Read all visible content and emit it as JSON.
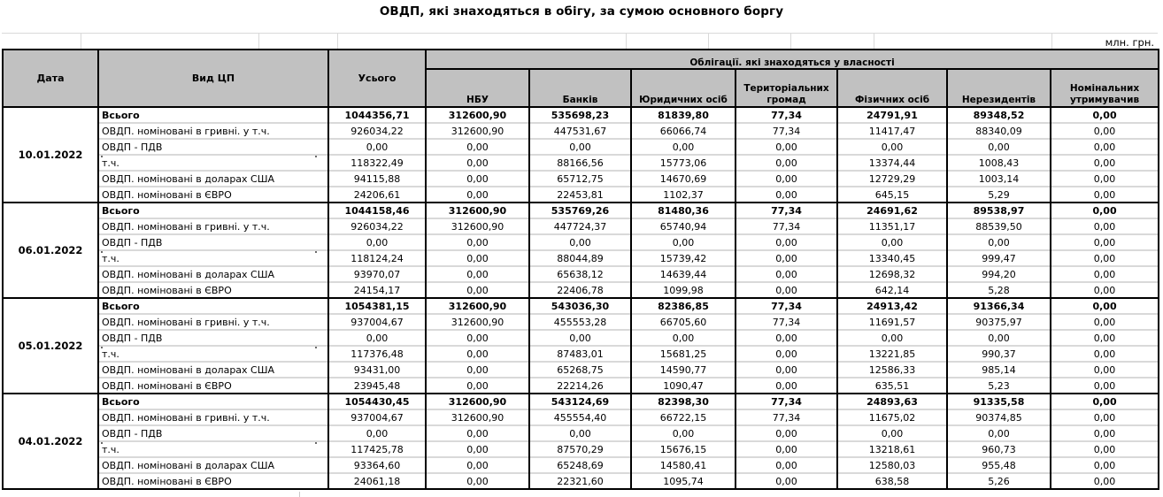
{
  "title": "ОВДП, які знаходяться в обігу, за сумою основного боргу",
  "unit_label": "млн. грн.",
  "table": {
    "col_date": "Дата",
    "col_type": "Вид ЦП",
    "col_total": "Усього",
    "ownership_header": "Облігації. які знаходяться у власності",
    "ownership_columns": [
      "НБУ",
      "Банків",
      "Юридичних осіб",
      "Територіальних громад",
      "Фізичних осіб",
      "Нерезидентів",
      "Номінальних утримувачив"
    ],
    "groups": [
      {
        "date": "10.01.2022",
        "rows": [
          {
            "label": "Всього",
            "values": [
              "1044356,71",
              "312600,90",
              "535698,23",
              "81839,80",
              "77,34",
              "24791,91",
              "89348,52",
              "0,00"
            ]
          },
          {
            "label": "ОВДП. номіновані в гривні. у т.ч.",
            "values": [
              "926034,22",
              "312600,90",
              "447531,67",
              "66066,74",
              "77,34",
              "11417,47",
              "88340,09",
              "0,00"
            ]
          },
          {
            "label": "ОВДП - ПДВ",
            "values": [
              "0,00",
              "0,00",
              "0,00",
              "0,00",
              "0,00",
              "0,00",
              "0,00",
              "0,00"
            ]
          },
          {
            "label": "т.ч.",
            "values": [
              "118322,49",
              "0,00",
              "88166,56",
              "15773,06",
              "0,00",
              "13374,44",
              "1008,43",
              "0,00"
            ]
          },
          {
            "label": "ОВДП. номіновані в доларах США",
            "values": [
              "94115,88",
              "0,00",
              "65712,75",
              "14670,69",
              "0,00",
              "12729,29",
              "1003,14",
              "0,00"
            ]
          },
          {
            "label": "ОВДП. номіновані в ЄВРО",
            "values": [
              "24206,61",
              "0,00",
              "22453,81",
              "1102,37",
              "0,00",
              "645,15",
              "5,29",
              "0,00"
            ]
          }
        ]
      },
      {
        "date": "06.01.2022",
        "rows": [
          {
            "label": "Всього",
            "values": [
              "1044158,46",
              "312600,90",
              "535769,26",
              "81480,36",
              "77,34",
              "24691,62",
              "89538,97",
              "0,00"
            ]
          },
          {
            "label": "ОВДП. номіновані в гривні. у т.ч.",
            "values": [
              "926034,22",
              "312600,90",
              "447724,37",
              "65740,94",
              "77,34",
              "11351,17",
              "88539,50",
              "0,00"
            ]
          },
          {
            "label": "ОВДП - ПДВ",
            "values": [
              "0,00",
              "0,00",
              "0,00",
              "0,00",
              "0,00",
              "0,00",
              "0,00",
              "0,00"
            ]
          },
          {
            "label": "т.ч.",
            "values": [
              "118124,24",
              "0,00",
              "88044,89",
              "15739,42",
              "0,00",
              "13340,45",
              "999,47",
              "0,00"
            ]
          },
          {
            "label": "ОВДП. номіновані в доларах США",
            "values": [
              "93970,07",
              "0,00",
              "65638,12",
              "14639,44",
              "0,00",
              "12698,32",
              "994,20",
              "0,00"
            ]
          },
          {
            "label": "ОВДП. номіновані в ЄВРО",
            "values": [
              "24154,17",
              "0,00",
              "22406,78",
              "1099,98",
              "0,00",
              "642,14",
              "5,28",
              "0,00"
            ]
          }
        ]
      },
      {
        "date": "05.01.2022",
        "rows": [
          {
            "label": "Всього",
            "values": [
              "1054381,15",
              "312600,90",
              "543036,30",
              "82386,85",
              "77,34",
              "24913,42",
              "91366,34",
              "0,00"
            ]
          },
          {
            "label": "ОВДП. номіновані в гривні. у т.ч.",
            "values": [
              "937004,67",
              "312600,90",
              "455553,28",
              "66705,60",
              "77,34",
              "11691,57",
              "90375,97",
              "0,00"
            ]
          },
          {
            "label": "ОВДП - ПДВ",
            "values": [
              "0,00",
              "0,00",
              "0,00",
              "0,00",
              "0,00",
              "0,00",
              "0,00",
              "0,00"
            ]
          },
          {
            "label": "т.ч.",
            "values": [
              "117376,48",
              "0,00",
              "87483,01",
              "15681,25",
              "0,00",
              "13221,85",
              "990,37",
              "0,00"
            ]
          },
          {
            "label": "ОВДП. номіновані в доларах США",
            "values": [
              "93431,00",
              "0,00",
              "65268,75",
              "14590,77",
              "0,00",
              "12586,33",
              "985,14",
              "0,00"
            ]
          },
          {
            "label": "ОВДП. номіновані в ЄВРО",
            "values": [
              "23945,48",
              "0,00",
              "22214,26",
              "1090,47",
              "0,00",
              "635,51",
              "5,23",
              "0,00"
            ]
          }
        ]
      },
      {
        "date": "04.01.2022",
        "rows": [
          {
            "label": "Всього",
            "values": [
              "1054430,45",
              "312600,90",
              "543124,69",
              "82398,30",
              "77,34",
              "24893,63",
              "91335,58",
              "0,00"
            ]
          },
          {
            "label": "ОВДП. номіновані в гривні. у т.ч.",
            "values": [
              "937004,67",
              "312600,90",
              "455554,40",
              "66722,15",
              "77,34",
              "11675,02",
              "90374,85",
              "0,00"
            ]
          },
          {
            "label": "ОВДП - ПДВ",
            "values": [
              "0,00",
              "0,00",
              "0,00",
              "0,00",
              "0,00",
              "0,00",
              "0,00",
              "0,00"
            ]
          },
          {
            "label": "т.ч.",
            "values": [
              "117425,78",
              "0,00",
              "87570,29",
              "15676,15",
              "0,00",
              "13218,61",
              "960,73",
              "0,00"
            ]
          },
          {
            "label": "ОВДП. номіновані в доларах США",
            "values": [
              "93364,60",
              "0,00",
              "65248,69",
              "14580,41",
              "0,00",
              "12580,03",
              "955,48",
              "0,00"
            ]
          },
          {
            "label": "ОВДП. номіновані в ЄВРО",
            "values": [
              "24061,18",
              "0,00",
              "22321,60",
              "1095,74",
              "0,00",
              "638,58",
              "5,26",
              "0,00"
            ]
          }
        ]
      }
    ]
  }
}
